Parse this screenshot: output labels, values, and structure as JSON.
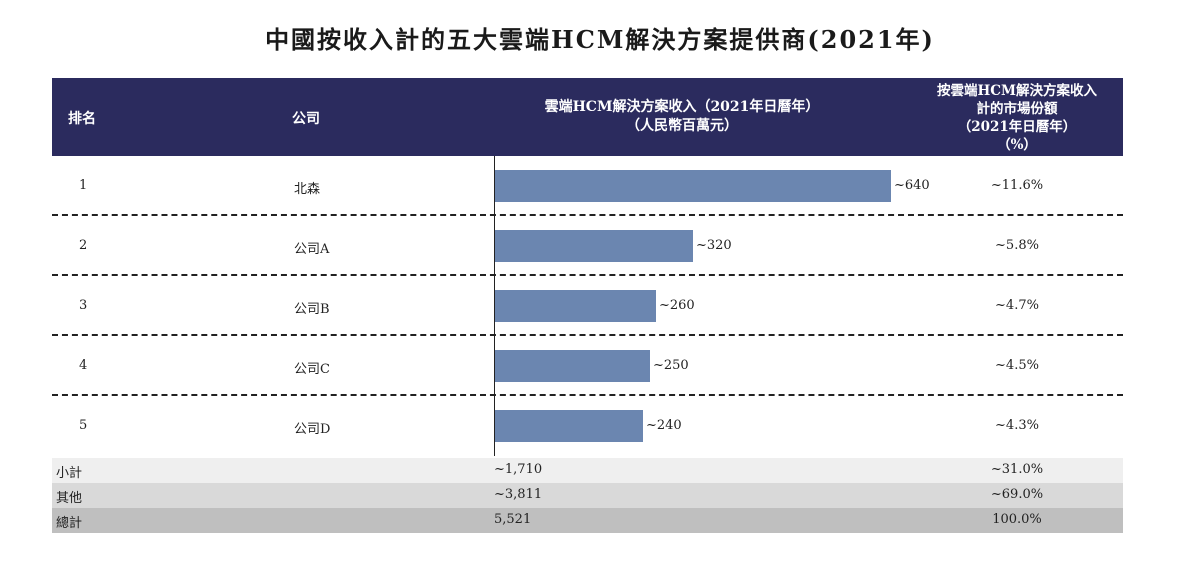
{
  "title": "中國按收入計的五大雲端HCM解決方案提供商(2021年)",
  "header": {
    "rank": "排名",
    "company": "公司",
    "revenue_line1": "雲端HCM解決方案收入（2021年日曆年）",
    "revenue_line2": "（人民幣百萬元）",
    "share_line1": "按雲端HCM解決方案收入",
    "share_line2": "計的市場份額",
    "share_line3": "（2021年日曆年）",
    "share_line4": "（%）"
  },
  "rows": [
    {
      "rank": "1",
      "company": "北森",
      "revenue_label": "~640",
      "share": "~11.6%"
    },
    {
      "rank": "2",
      "company": "公司A",
      "revenue_label": "~320",
      "share": "~5.8%"
    },
    {
      "rank": "3",
      "company": "公司B",
      "revenue_label": "~260",
      "share": "~4.7%"
    },
    {
      "rank": "4",
      "company": "公司C",
      "revenue_label": "~250",
      "share": "~4.5%"
    },
    {
      "rank": "5",
      "company": "公司D",
      "revenue_label": "~240",
      "share": "~4.3%"
    }
  ],
  "summary": [
    {
      "label": "小計",
      "revenue": "~1,710",
      "share": "~31.0%",
      "bg": "#efefef"
    },
    {
      "label": "其他",
      "revenue": "~3,811",
      "share": "~69.0%",
      "bg": "#d9d9d9"
    },
    {
      "label": "總計",
      "revenue": "5,521",
      "share": "100.0%",
      "bg": "#bfbfbf"
    }
  ],
  "colors": {
    "header_bg": "#2b2b5e",
    "bar": "#6b86b0"
  },
  "chart_data": {
    "type": "bar",
    "orientation": "horizontal",
    "categories": [
      "北森",
      "公司A",
      "公司B",
      "公司C",
      "公司D"
    ],
    "values": [
      640,
      320,
      260,
      250,
      240
    ],
    "title": "中國按收入計的五大雲端HCM解決方案提供商(2021年)",
    "xlabel": "",
    "ylabel": "",
    "xlim": [
      0,
      700
    ],
    "grid": false
  }
}
